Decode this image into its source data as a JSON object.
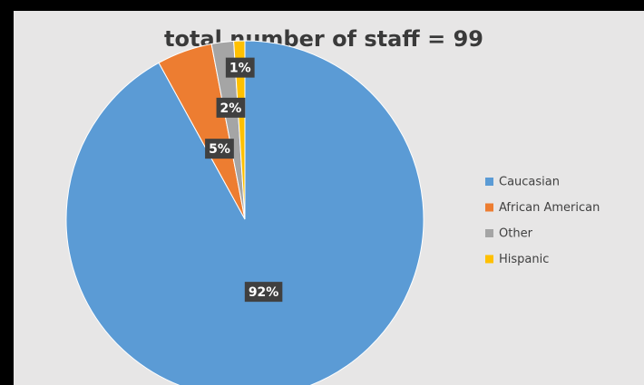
{
  "chart_data": {
    "type": "pie",
    "title": "total number of staff = 99",
    "categories": [
      "Caucasian",
      "African American",
      "Other",
      "Hispanic"
    ],
    "values": [
      92,
      5,
      2,
      1
    ],
    "value_labels": [
      "92%",
      "5%",
      "2%",
      "1%"
    ],
    "colors": [
      "#5b9bd5",
      "#ed7d31",
      "#a5a5a5",
      "#ffc000"
    ],
    "legend": "right"
  }
}
